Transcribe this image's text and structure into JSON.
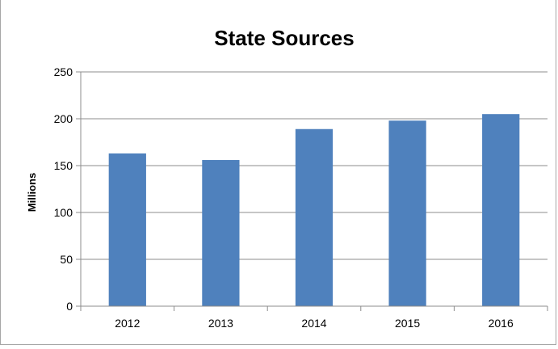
{
  "chart_data": {
    "type": "bar",
    "title": "State Sources",
    "xlabel": "",
    "ylabel": "Millions",
    "categories": [
      "2012",
      "2013",
      "2014",
      "2015",
      "2016"
    ],
    "values": [
      163,
      156,
      189,
      198,
      205
    ],
    "ylim": [
      0,
      250
    ],
    "yticks": [
      0,
      50,
      100,
      150,
      200,
      250
    ],
    "grid": true,
    "legend": "none",
    "bar_color": "#4f81bd"
  }
}
